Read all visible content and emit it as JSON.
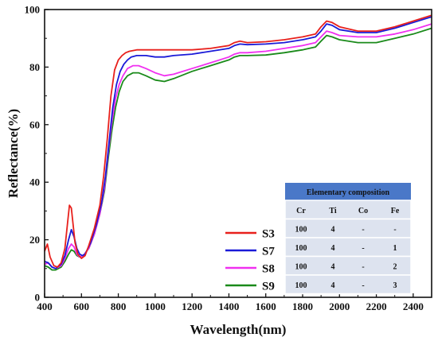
{
  "chart_data": {
    "type": "line",
    "title": "",
    "xlabel": "Wavelength(nm)",
    "ylabel": "Reflectance(%)",
    "xlim": [
      400,
      2500
    ],
    "ylim": [
      0,
      100
    ],
    "xticks": [
      400,
      600,
      800,
      1000,
      1200,
      1400,
      1600,
      1800,
      2000,
      2200,
      2400
    ],
    "yticks": [
      0,
      20,
      40,
      60,
      80,
      100
    ],
    "grid": false,
    "legend_position": "lower-middle",
    "series": [
      {
        "name": "S3",
        "color": "#e8201c",
        "points": [
          [
            400,
            16
          ],
          [
            415,
            18.5
          ],
          [
            430,
            14
          ],
          [
            450,
            11
          ],
          [
            470,
            10.5
          ],
          [
            490,
            12
          ],
          [
            510,
            17
          ],
          [
            525,
            26
          ],
          [
            535,
            32
          ],
          [
            545,
            31
          ],
          [
            555,
            25
          ],
          [
            565,
            19
          ],
          [
            580,
            15
          ],
          [
            600,
            13.5
          ],
          [
            620,
            14.5
          ],
          [
            640,
            18
          ],
          [
            670,
            24
          ],
          [
            700,
            32
          ],
          [
            720,
            42
          ],
          [
            740,
            55
          ],
          [
            760,
            70
          ],
          [
            780,
            79
          ],
          [
            800,
            82.5
          ],
          [
            820,
            84
          ],
          [
            840,
            85
          ],
          [
            860,
            85.5
          ],
          [
            900,
            86
          ],
          [
            1000,
            86
          ],
          [
            1100,
            86
          ],
          [
            1200,
            86
          ],
          [
            1300,
            86.5
          ],
          [
            1400,
            87.5
          ],
          [
            1430,
            88.5
          ],
          [
            1460,
            89
          ],
          [
            1500,
            88.5
          ],
          [
            1600,
            88.8
          ],
          [
            1700,
            89.5
          ],
          [
            1800,
            90.5
          ],
          [
            1870,
            91.5
          ],
          [
            1900,
            94
          ],
          [
            1930,
            96
          ],
          [
            1960,
            95.5
          ],
          [
            2000,
            94
          ],
          [
            2100,
            92.5
          ],
          [
            2200,
            92.5
          ],
          [
            2300,
            94
          ],
          [
            2400,
            96
          ],
          [
            2500,
            98
          ]
        ]
      },
      {
        "name": "S7",
        "color": "#1a1ad8",
        "points": [
          [
            400,
            12.5
          ],
          [
            420,
            12
          ],
          [
            440,
            10.5
          ],
          [
            460,
            10
          ],
          [
            490,
            11.5
          ],
          [
            510,
            14.5
          ],
          [
            530,
            20
          ],
          [
            545,
            23.5
          ],
          [
            560,
            21
          ],
          [
            575,
            17
          ],
          [
            590,
            15
          ],
          [
            605,
            14.5
          ],
          [
            620,
            15
          ],
          [
            650,
            19
          ],
          [
            680,
            25
          ],
          [
            710,
            33
          ],
          [
            730,
            42
          ],
          [
            750,
            54
          ],
          [
            770,
            66
          ],
          [
            790,
            74
          ],
          [
            810,
            78.5
          ],
          [
            830,
            81
          ],
          [
            850,
            82.5
          ],
          [
            870,
            83.5
          ],
          [
            900,
            84
          ],
          [
            950,
            84
          ],
          [
            1000,
            83.5
          ],
          [
            1050,
            83.5
          ],
          [
            1100,
            84
          ],
          [
            1200,
            84.5
          ],
          [
            1300,
            85.5
          ],
          [
            1400,
            86.5
          ],
          [
            1430,
            87.5
          ],
          [
            1460,
            88
          ],
          [
            1500,
            87.8
          ],
          [
            1600,
            88
          ],
          [
            1700,
            88.5
          ],
          [
            1800,
            89.5
          ],
          [
            1870,
            90.5
          ],
          [
            1900,
            92.5
          ],
          [
            1930,
            95
          ],
          [
            1960,
            94.5
          ],
          [
            2000,
            93
          ],
          [
            2100,
            92
          ],
          [
            2200,
            92
          ],
          [
            2300,
            93.5
          ],
          [
            2400,
            95.5
          ],
          [
            2500,
            97.5
          ]
        ]
      },
      {
        "name": "S8",
        "color": "#f030f0",
        "points": [
          [
            400,
            11.5
          ],
          [
            420,
            12
          ],
          [
            440,
            10.5
          ],
          [
            460,
            10
          ],
          [
            490,
            11
          ],
          [
            510,
            13.5
          ],
          [
            530,
            17
          ],
          [
            545,
            18.5
          ],
          [
            560,
            17.5
          ],
          [
            575,
            15
          ],
          [
            590,
            14
          ],
          [
            610,
            14.5
          ],
          [
            640,
            17
          ],
          [
            670,
            22
          ],
          [
            700,
            29
          ],
          [
            725,
            38
          ],
          [
            745,
            50
          ],
          [
            765,
            61
          ],
          [
            785,
            69
          ],
          [
            805,
            74
          ],
          [
            825,
            77
          ],
          [
            850,
            79.5
          ],
          [
            880,
            80.5
          ],
          [
            910,
            80.5
          ],
          [
            950,
            79.5
          ],
          [
            1000,
            78
          ],
          [
            1050,
            77
          ],
          [
            1100,
            77.5
          ],
          [
            1200,
            79.5
          ],
          [
            1300,
            81.5
          ],
          [
            1400,
            83.5
          ],
          [
            1430,
            84.5
          ],
          [
            1460,
            85
          ],
          [
            1500,
            85
          ],
          [
            1600,
            85.5
          ],
          [
            1700,
            86.5
          ],
          [
            1800,
            87.5
          ],
          [
            1870,
            88.5
          ],
          [
            1900,
            90.5
          ],
          [
            1930,
            92.5
          ],
          [
            1960,
            92
          ],
          [
            2000,
            91
          ],
          [
            2100,
            90.5
          ],
          [
            2200,
            90.5
          ],
          [
            2300,
            91.5
          ],
          [
            2400,
            93
          ],
          [
            2500,
            95
          ]
        ]
      },
      {
        "name": "S9",
        "color": "#1a8a1a",
        "points": [
          [
            400,
            11
          ],
          [
            420,
            10.5
          ],
          [
            440,
            9.5
          ],
          [
            460,
            9.5
          ],
          [
            490,
            10.5
          ],
          [
            510,
            12.5
          ],
          [
            530,
            15
          ],
          [
            545,
            16.5
          ],
          [
            560,
            16
          ],
          [
            575,
            14.5
          ],
          [
            590,
            14
          ],
          [
            610,
            14.5
          ],
          [
            640,
            17
          ],
          [
            670,
            22
          ],
          [
            700,
            29
          ],
          [
            725,
            37
          ],
          [
            745,
            48
          ],
          [
            765,
            58
          ],
          [
            785,
            66
          ],
          [
            805,
            71.5
          ],
          [
            825,
            75
          ],
          [
            850,
            77
          ],
          [
            880,
            78
          ],
          [
            910,
            78
          ],
          [
            950,
            77
          ],
          [
            1000,
            75.5
          ],
          [
            1050,
            75
          ],
          [
            1100,
            76
          ],
          [
            1200,
            78.5
          ],
          [
            1300,
            80.5
          ],
          [
            1400,
            82.5
          ],
          [
            1430,
            83.5
          ],
          [
            1460,
            84
          ],
          [
            1500,
            84
          ],
          [
            1600,
            84.2
          ],
          [
            1700,
            85
          ],
          [
            1800,
            86
          ],
          [
            1870,
            87
          ],
          [
            1900,
            89
          ],
          [
            1930,
            91
          ],
          [
            1960,
            90.5
          ],
          [
            2000,
            89.5
          ],
          [
            2100,
            88.5
          ],
          [
            2200,
            88.5
          ],
          [
            2300,
            90
          ],
          [
            2400,
            91.5
          ],
          [
            2500,
            93.5
          ]
        ]
      }
    ]
  },
  "table": {
    "title": "Elementary composition",
    "headers": [
      "Cr",
      "Ti",
      "Co",
      "Fe"
    ],
    "rows": [
      [
        "100",
        "4",
        "-",
        "-"
      ],
      [
        "100",
        "4",
        "-",
        "1"
      ],
      [
        "100",
        "4",
        "-",
        "2"
      ],
      [
        "100",
        "4",
        "-",
        "3"
      ]
    ],
    "header_bg": "#4a78c8",
    "cell_bg": "#dde3ef"
  }
}
